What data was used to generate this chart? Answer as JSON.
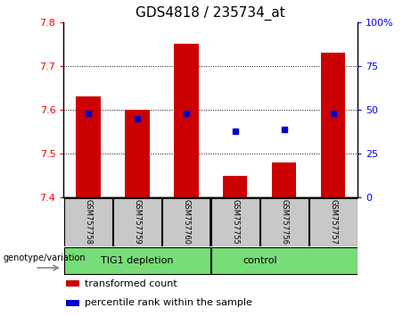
{
  "title": "GDS4818 / 235734_at",
  "samples": [
    "GSM757758",
    "GSM757759",
    "GSM757760",
    "GSM757755",
    "GSM757756",
    "GSM757757"
  ],
  "group_labels": [
    "TIG1 depletion",
    "control"
  ],
  "bar_values": [
    7.63,
    7.6,
    7.75,
    7.45,
    7.48,
    7.73
  ],
  "bar_base": 7.4,
  "percentile_values": [
    48,
    45,
    48,
    38,
    39,
    48
  ],
  "percentile_scale_min": 0,
  "percentile_scale_max": 100,
  "ylim_left": [
    7.4,
    7.8
  ],
  "yticks_left": [
    7.4,
    7.5,
    7.6,
    7.7,
    7.8
  ],
  "yticks_right": [
    0,
    25,
    50,
    75,
    100
  ],
  "bar_color": "#CC0000",
  "percentile_color": "#0000CC",
  "genotype_label": "genotype/variation",
  "legend_items": [
    "transformed count",
    "percentile rank within the sample"
  ],
  "legend_colors": [
    "#CC0000",
    "#0000CC"
  ],
  "group_split": 3,
  "title_fontsize": 11,
  "tick_fontsize": 8,
  "sample_fontsize": 6,
  "group_fontsize": 8,
  "legend_fontsize": 8,
  "geno_fontsize": 7,
  "bar_width": 0.5,
  "marker_size": 5,
  "bg_color_sample": "#C8C8C8",
  "bg_color_group": "#77DD77"
}
